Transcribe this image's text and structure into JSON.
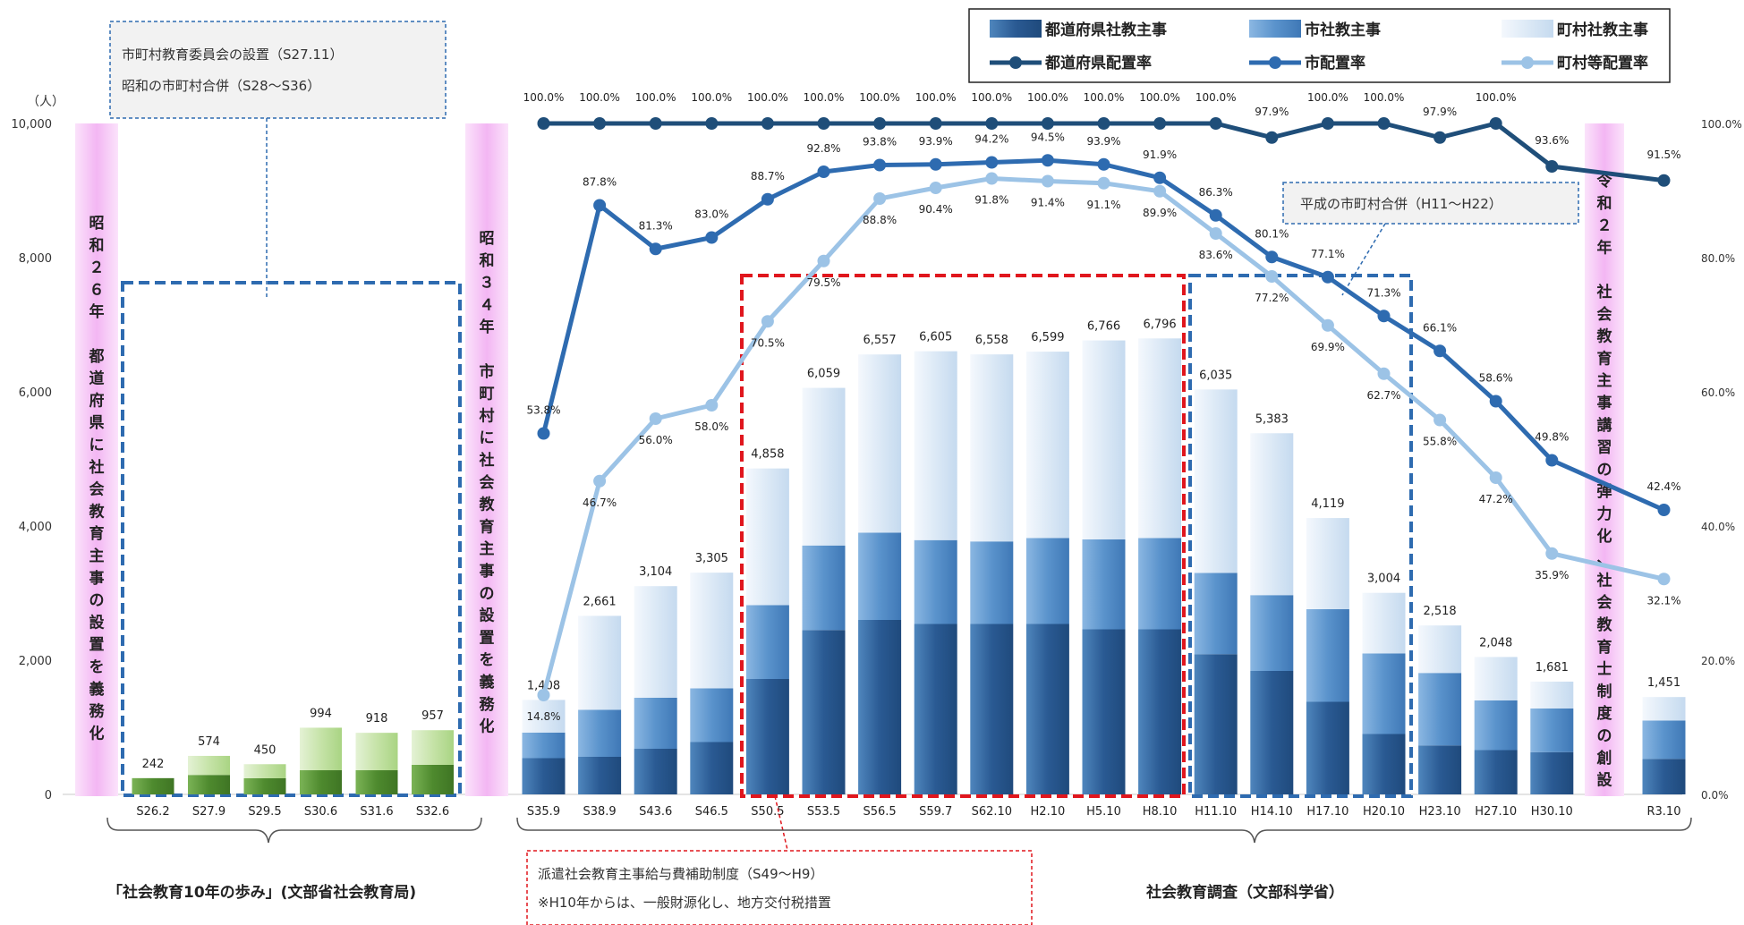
{
  "chart_data": {
    "type": "bar",
    "stacked": true,
    "y_unit": "（人）",
    "ylim": [
      0,
      10000
    ],
    "yticks": [
      "0",
      "2,000",
      "4,000",
      "6,000",
      "8,000",
      "10,000"
    ],
    "y2lim": [
      0,
      100
    ],
    "y2ticks": [
      "0.0%",
      "20.0%",
      "40.0%",
      "60.0%",
      "80.0%",
      "100.0%"
    ],
    "grid": false,
    "legend_position": "top-right",
    "legend": {
      "pref_staff": "都道府県社教主事",
      "city_staff": "市社教主事",
      "town_staff": "町村社教主事",
      "pref_rate": "都道府県配置率",
      "city_rate": "市配置率",
      "town_rate": "町村等配置率"
    },
    "early": {
      "categories": [
        "S26.2",
        "S27.9",
        "S29.5",
        "S30.6",
        "S31.6",
        "S32.6"
      ],
      "dark_values": [
        242,
        290,
        240,
        360,
        360,
        440
      ],
      "light_values": [
        0,
        284,
        210,
        634,
        558,
        517
      ],
      "totals": [
        "242",
        "574",
        "450",
        "994",
        "918",
        "957"
      ],
      "colors": {
        "dark": "#4e8a2e",
        "light": "#c6e3a8"
      }
    },
    "survey": {
      "categories": [
        "S35.9",
        "S38.9",
        "S43.6",
        "S46.5",
        "S50.5",
        "S53.5",
        "S56.5",
        "S59.7",
        "S62.10",
        "H2.10",
        "H5.10",
        "H8.10",
        "H11.10",
        "H14.10",
        "H17.10",
        "H20.10",
        "H23.10",
        "H27.10",
        "H30.10",
        "R3.10"
      ],
      "series": [
        {
          "name": "都道府県社教主事",
          "values": [
            540,
            560,
            680,
            780,
            1720,
            2450,
            2600,
            2540,
            2540,
            2540,
            2460,
            2460,
            2090,
            1840,
            1380,
            900,
            730,
            660,
            630,
            530
          ],
          "color": "#2e5e96"
        },
        {
          "name": "市社教主事",
          "values": [
            380,
            700,
            760,
            800,
            1100,
            1260,
            1300,
            1250,
            1230,
            1280,
            1340,
            1360,
            1210,
            1130,
            1380,
            1200,
            1080,
            740,
            650,
            570
          ],
          "color": "#5a93cc"
        },
        {
          "name": "町村社教主事",
          "values": [
            488,
            1401,
            1664,
            1725,
            2038,
            2349,
            2657,
            2815,
            2788,
            2779,
            2966,
            2976,
            2735,
            2413,
            1359,
            904,
            708,
            648,
            401,
            351
          ],
          "color": "#dce9f6"
        }
      ],
      "totals": [
        "1,408",
        "2,661",
        "3,104",
        "3,305",
        "4,858",
        "6,059",
        "6,557",
        "6,605",
        "6,558",
        "6,599",
        "6,766",
        "6,796",
        "6,035",
        "5,383",
        "4,119",
        "3,004",
        "2,518",
        "2,048",
        "1,681",
        "1,451"
      ]
    },
    "rate_series": [
      {
        "name": "都道府県配置率",
        "values": [
          100.0,
          100.0,
          100.0,
          100.0,
          100.0,
          100.0,
          100.0,
          100.0,
          100.0,
          100.0,
          100.0,
          100.0,
          100.0,
          97.9,
          100.0,
          100.0,
          97.9,
          100.0,
          93.6,
          91.5
        ],
        "labels": [
          "100.0%",
          "100.0%",
          "100.0%",
          "100.0%",
          "100.0%",
          "100.0%",
          "100.0%",
          "100.0%",
          "100.0%",
          "100.0%",
          "100.0%",
          "100.0%",
          "100.0%",
          "97.9%",
          "100.0%",
          "100.0%",
          "97.9%",
          "100.0%",
          "93.6%",
          "91.5%"
        ],
        "color": "#1f4e79"
      },
      {
        "name": "市配置率",
        "values": [
          53.8,
          87.8,
          81.3,
          83.0,
          88.7,
          92.8,
          93.8,
          93.9,
          94.2,
          94.5,
          93.9,
          91.9,
          86.3,
          80.1,
          77.1,
          71.3,
          66.1,
          58.6,
          49.8,
          42.4
        ],
        "labels": [
          "53.8%",
          "87.8%",
          "81.3%",
          "83.0%",
          "88.7%",
          "92.8%",
          "93.8%",
          "93.9%",
          "94.2%",
          "94.5%",
          "93.9%",
          "91.9%",
          "86.3%",
          "80.1%",
          "77.1%",
          "71.3%",
          "66.1%",
          "58.6%",
          "49.8%",
          "42.4%"
        ],
        "color": "#2e6bb0"
      },
      {
        "name": "町村等配置率",
        "values": [
          14.8,
          46.7,
          56.0,
          58.0,
          70.5,
          79.5,
          88.8,
          90.4,
          91.8,
          91.4,
          91.1,
          89.9,
          83.6,
          77.2,
          69.9,
          62.7,
          55.8,
          47.2,
          35.9,
          32.1
        ],
        "labels": [
          "14.8%",
          "46.7%",
          "56.0%",
          "58.0%",
          "70.5%",
          "79.5%",
          "88.8%",
          "90.4%",
          "91.8%",
          "91.4%",
          "91.1%",
          "89.9%",
          "83.6%",
          "77.2%",
          "69.9%",
          "62.7%",
          "55.8%",
          "47.2%",
          "35.9%",
          "32.1%"
        ],
        "color": "#9cc3e6"
      }
    ],
    "annotations": {
      "s26_mandate": "昭和２６年　都道府県に社会教育主事の設置を義務化",
      "s34_mandate": "昭和３４年　市町村に社会教育主事の設置を義務化",
      "r2_reform": "令和２年　社会教育主事講習の弾力化、社会教育士制度の創設",
      "board_setup": "市町村教育委員会の設置（S27.11）",
      "showa_merger": "昭和の市町村合併（S28～S36）",
      "heisei_merger": "平成の市町村合併（H11～H22）",
      "subsidy_line1": "派遣社会教育主事給与費補助制度（S49～H9）",
      "subsidy_line2": "※H10年からは、一般財源化し、地方交付税措置",
      "source_left": "「社会教育10年の歩み」(文部省社会教育局)",
      "source_right": "社会教育調査（文部科学省）"
    }
  }
}
